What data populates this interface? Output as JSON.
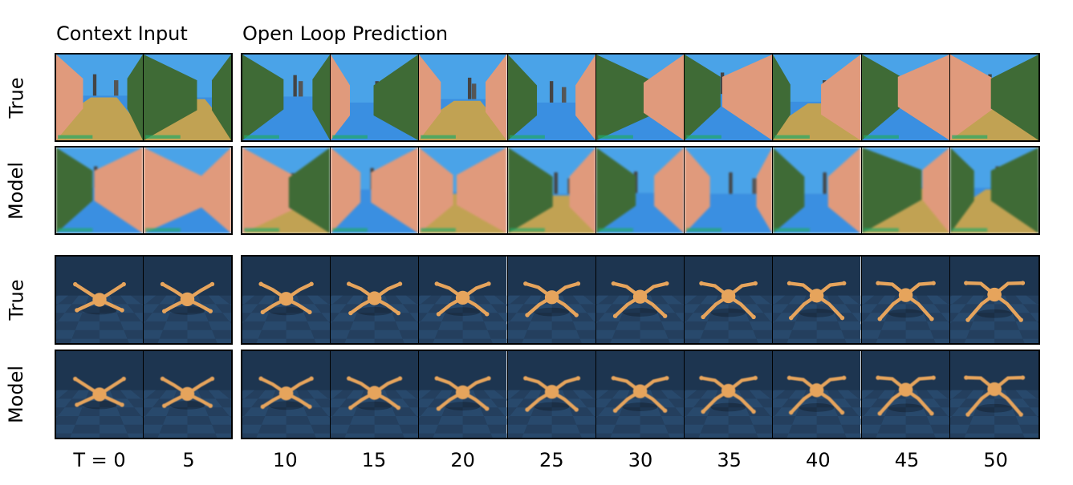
{
  "headers": {
    "context": "Context Input",
    "prediction": "Open Loop Prediction"
  },
  "row_labels": [
    "True",
    "Model",
    "True",
    "Model"
  ],
  "time_steps": [
    "T = 0",
    "5",
    "10",
    "15",
    "20",
    "25",
    "30",
    "35",
    "40",
    "45",
    "50"
  ],
  "env_colors": {
    "sky": "#4aa3e8",
    "floor_blue": "#3b8fe0",
    "wall_pink": "#e09a7c",
    "wall_green": "#3f6b36",
    "sand": "#d9a63a",
    "mujoco_bg": "#1d3550",
    "mujoco_floor": "#2c5278",
    "ant_body": "#e6a45c"
  }
}
